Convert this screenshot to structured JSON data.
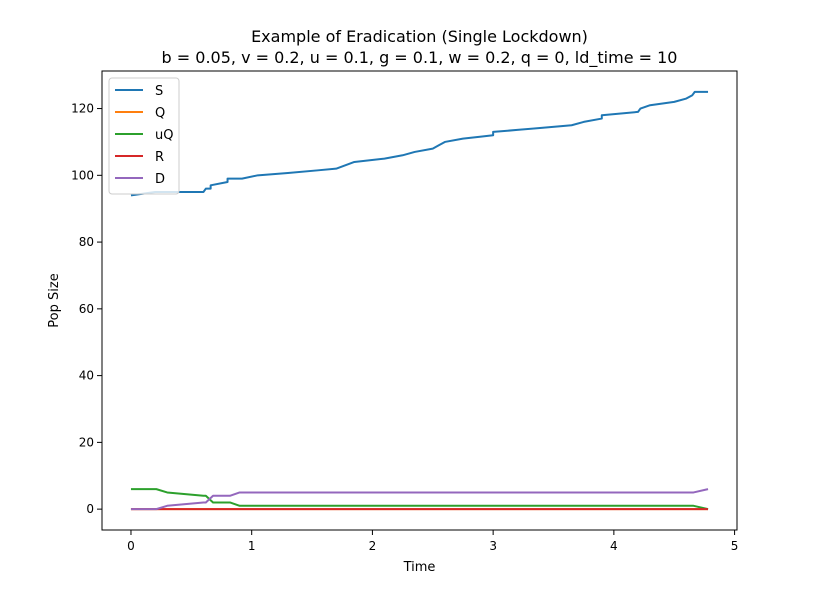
{
  "chart_data": {
    "type": "line",
    "title_line1": "Example of Eradication (Single Lockdown)",
    "title_line2": "b = 0.05, v = 0.2, u = 0.1, g = 0.1, w = 0.2, q = 0, ld_time = 10",
    "xlabel": "Time",
    "ylabel": "Pop Size",
    "xlim": [
      -0.24,
      5.02
    ],
    "ylim": [
      -6.25,
      131.25
    ],
    "xticks": [
      0,
      1,
      2,
      3,
      4,
      5
    ],
    "yticks": [
      0,
      20,
      40,
      60,
      80,
      100,
      120
    ],
    "grid": false,
    "legend_position": "upper-left",
    "series": [
      {
        "name": "S",
        "color": "#1f77b4",
        "points": [
          [
            0,
            94
          ],
          [
            0.2,
            95
          ],
          [
            0.4,
            95
          ],
          [
            0.6,
            95
          ],
          [
            0.62,
            96
          ],
          [
            0.66,
            96
          ],
          [
            0.66,
            97
          ],
          [
            0.8,
            98
          ],
          [
            0.8,
            99
          ],
          [
            0.92,
            99
          ],
          [
            1.05,
            100
          ],
          [
            1.3,
            100.7
          ],
          [
            1.55,
            101.5
          ],
          [
            1.7,
            102
          ],
          [
            1.85,
            104
          ],
          [
            2.1,
            105
          ],
          [
            2.25,
            106
          ],
          [
            2.35,
            107
          ],
          [
            2.5,
            108
          ],
          [
            2.55,
            109
          ],
          [
            2.6,
            110
          ],
          [
            2.75,
            111
          ],
          [
            2.9,
            111.6
          ],
          [
            3.0,
            112
          ],
          [
            3.0,
            113
          ],
          [
            3.2,
            113.6
          ],
          [
            3.4,
            114.2
          ],
          [
            3.65,
            115
          ],
          [
            3.75,
            116
          ],
          [
            3.9,
            117
          ],
          [
            3.9,
            118
          ],
          [
            4.2,
            119
          ],
          [
            4.22,
            120
          ],
          [
            4.3,
            121
          ],
          [
            4.5,
            122
          ],
          [
            4.6,
            123
          ],
          [
            4.65,
            124
          ],
          [
            4.67,
            125
          ],
          [
            4.78,
            125
          ]
        ]
      },
      {
        "name": "Q",
        "color": "#ff7f0e",
        "points": [
          [
            0,
            0
          ],
          [
            4.78,
            0
          ]
        ]
      },
      {
        "name": "uQ",
        "color": "#2ca02c",
        "points": [
          [
            0,
            6
          ],
          [
            0.21,
            6
          ],
          [
            0.3,
            5
          ],
          [
            0.6,
            4
          ],
          [
            0.62,
            4
          ],
          [
            0.68,
            2
          ],
          [
            0.82,
            2
          ],
          [
            0.9,
            1
          ],
          [
            4.66,
            1
          ],
          [
            4.78,
            0
          ]
        ]
      },
      {
        "name": "R",
        "color": "#d62728",
        "points": [
          [
            0,
            0
          ],
          [
            4.78,
            0
          ]
        ]
      },
      {
        "name": "D",
        "color": "#9467bd",
        "points": [
          [
            0,
            0
          ],
          [
            0.21,
            0
          ],
          [
            0.3,
            1
          ],
          [
            0.6,
            2
          ],
          [
            0.62,
            2
          ],
          [
            0.68,
            4
          ],
          [
            0.82,
            4
          ],
          [
            0.9,
            5
          ],
          [
            4.66,
            5
          ],
          [
            4.78,
            6
          ]
        ]
      }
    ]
  }
}
